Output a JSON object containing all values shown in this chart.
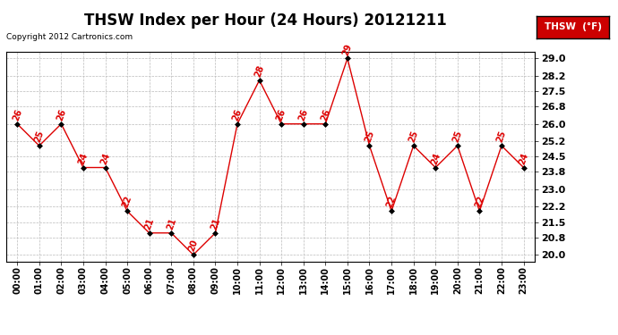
{
  "title": "THSW Index per Hour (24 Hours) 20121211",
  "copyright": "Copyright 2012 Cartronics.com",
  "legend_label": "THSW  (°F)",
  "hours": [
    0,
    1,
    2,
    3,
    4,
    5,
    6,
    7,
    8,
    9,
    10,
    11,
    12,
    13,
    14,
    15,
    16,
    17,
    18,
    19,
    20,
    21,
    22,
    23
  ],
  "values": [
    26,
    25,
    26,
    24,
    24,
    22,
    21,
    21,
    20,
    21,
    26,
    28,
    26,
    26,
    26,
    29,
    25,
    22,
    25,
    24,
    25,
    22,
    25,
    24
  ],
  "xlabels": [
    "00:00",
    "01:00",
    "02:00",
    "03:00",
    "04:00",
    "05:00",
    "06:00",
    "07:00",
    "08:00",
    "09:00",
    "10:00",
    "11:00",
    "12:00",
    "13:00",
    "14:00",
    "15:00",
    "16:00",
    "17:00",
    "18:00",
    "19:00",
    "20:00",
    "21:00",
    "22:00",
    "23:00"
  ],
  "yticks": [
    20.0,
    20.8,
    21.5,
    22.2,
    23.0,
    23.8,
    24.5,
    25.2,
    26.0,
    26.8,
    27.5,
    28.2,
    29.0
  ],
  "ylim": [
    19.7,
    29.3
  ],
  "line_color": "#dd0000",
  "marker_color": "#000000",
  "label_color": "#dd0000",
  "bg_color": "#ffffff",
  "grid_color": "#bbbbbb",
  "title_fontsize": 12,
  "axis_fontsize": 7,
  "label_fontsize": 7,
  "legend_bg": "#cc0000",
  "legend_text_color": "#ffffff",
  "border_color": "#000000"
}
